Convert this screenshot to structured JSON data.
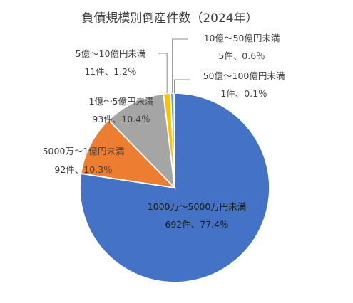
{
  "chart_data": {
    "type": "pie",
    "title": "負債規模別倒産件数（2024年）",
    "slices": [
      {
        "label": "1000万～5000万円未満",
        "count": 692,
        "count_text": "692件",
        "percent": 77.4,
        "percent_text": "77.4％",
        "color": "#4472C4"
      },
      {
        "label": "5000万～1億円未満",
        "count": 92,
        "count_text": "92件",
        "percent": 10.3,
        "percent_text": "10.3％",
        "color": "#ED7D31"
      },
      {
        "label": "1億～5億円未満",
        "count": 93,
        "count_text": "93件",
        "percent": 10.4,
        "percent_text": "10.4％",
        "color": "#A5A5A5"
      },
      {
        "label": "5億～10億円未満",
        "count": 11,
        "count_text": "11件",
        "percent": 1.2,
        "percent_text": "1.2％",
        "color": "#FFC000"
      },
      {
        "label": "10億～50億円未満",
        "count": 5,
        "count_text": "5件",
        "percent": 0.6,
        "percent_text": "0.6％",
        "color": "#5B9BD5"
      },
      {
        "label": "50億～100億円未満",
        "count": 1,
        "count_text": "1件",
        "percent": 0.1,
        "percent_text": "0.1％",
        "color": "#70AD47"
      }
    ],
    "legend": "none"
  }
}
